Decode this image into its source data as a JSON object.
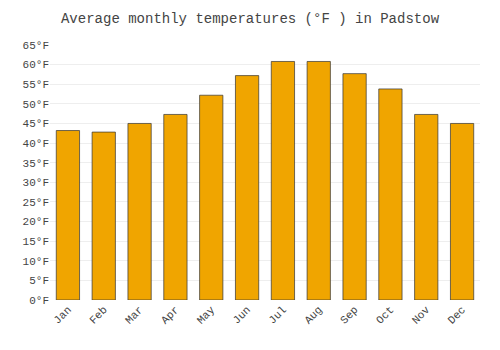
{
  "chart_data": {
    "type": "bar",
    "title": "Average monthly temperatures (°F ) in Padstow",
    "categories": [
      "Jan",
      "Feb",
      "Mar",
      "Apr",
      "May",
      "Jun",
      "Jul",
      "Aug",
      "Sep",
      "Oct",
      "Nov",
      "Dec"
    ],
    "values": [
      43.2,
      42.8,
      45.0,
      47.3,
      52.2,
      57.2,
      60.8,
      60.8,
      57.7,
      53.8,
      47.3,
      45.0
    ],
    "color": "#F0A500",
    "ylim": [
      0,
      65
    ],
    "yticks": [
      {
        "value": 0,
        "label": "0°F"
      },
      {
        "value": 5,
        "label": "5°F"
      },
      {
        "value": 10,
        "label": "10°F"
      },
      {
        "value": 15,
        "label": "15°F"
      },
      {
        "value": 20,
        "label": "20°F"
      },
      {
        "value": 25,
        "label": "25°F"
      },
      {
        "value": 30,
        "label": "30°F"
      },
      {
        "value": 35,
        "label": "35°F"
      },
      {
        "value": 40,
        "label": "40°F"
      },
      {
        "value": 45,
        "label": "45°F"
      },
      {
        "value": 50,
        "label": "50°F"
      },
      {
        "value": 55,
        "label": "55°F"
      },
      {
        "value": 60,
        "label": "60°F"
      },
      {
        "value": 65,
        "label": "65°F"
      }
    ],
    "grid": true
  }
}
